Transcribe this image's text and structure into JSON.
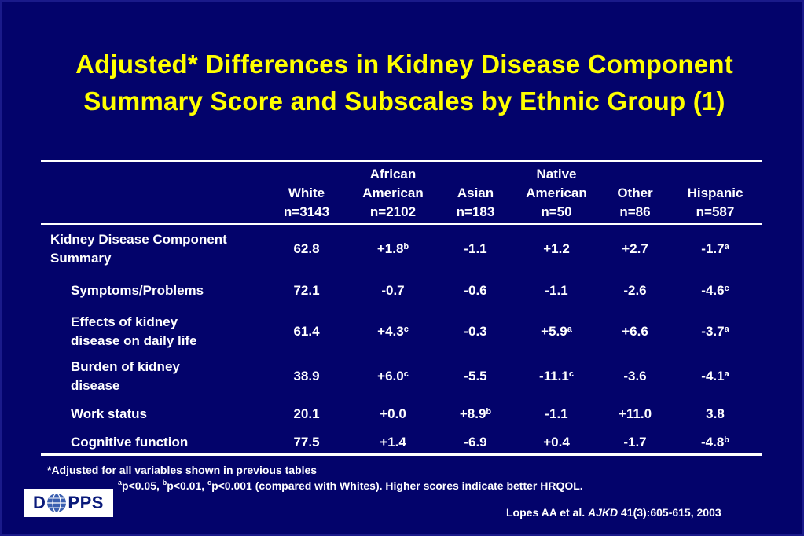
{
  "title": {
    "line1": "Adjusted* Differences in Kidney Disease Component",
    "line2": "Summary Score and Subscales by Ethnic Group (1)"
  },
  "colors": {
    "background": "#03036b",
    "title": "#ffff00",
    "text": "#ffffff"
  },
  "table": {
    "columns": [
      {
        "line1": "",
        "line2": "White",
        "line3": "n=3143"
      },
      {
        "line1": "African",
        "line2": "American",
        "line3": "n=2102"
      },
      {
        "line1": "",
        "line2": "Asian",
        "line3": "n=183"
      },
      {
        "line1": "Native",
        "line2": "American",
        "line3": "n=50"
      },
      {
        "line1": "",
        "line2": "Other",
        "line3": "n=86"
      },
      {
        "line1": "",
        "line2": "Hispanic",
        "line3": "n=587"
      }
    ],
    "rows": [
      {
        "label1": "Kidney Disease Component",
        "label2": "Summary",
        "values": [
          {
            "v": "62.8",
            "s": ""
          },
          {
            "v": "+1.8",
            "s": "b"
          },
          {
            "v": "-1.1",
            "s": ""
          },
          {
            "v": "+1.2",
            "s": ""
          },
          {
            "v": "+2.7",
            "s": ""
          },
          {
            "v": "-1.7",
            "s": "a"
          }
        ]
      },
      {
        "label1": "Symptoms/Problems",
        "label2": "",
        "values": [
          {
            "v": "72.1",
            "s": ""
          },
          {
            "v": "-0.7",
            "s": ""
          },
          {
            "v": "-0.6",
            "s": ""
          },
          {
            "v": "-1.1",
            "s": ""
          },
          {
            "v": "-2.6",
            "s": ""
          },
          {
            "v": "-4.6",
            "s": "c"
          }
        ]
      },
      {
        "label1": "Effects of kidney",
        "label2": "disease on daily life",
        "values": [
          {
            "v": "61.4",
            "s": ""
          },
          {
            "v": "+4.3",
            "s": "c"
          },
          {
            "v": "-0.3",
            "s": ""
          },
          {
            "v": "+5.9",
            "s": "a"
          },
          {
            "v": "+6.6",
            "s": ""
          },
          {
            "v": "-3.7",
            "s": "a"
          }
        ]
      },
      {
        "label1": "Burden of kidney",
        "label2": "disease",
        "values": [
          {
            "v": "38.9",
            "s": ""
          },
          {
            "v": "+6.0",
            "s": "c"
          },
          {
            "v": "-5.5",
            "s": ""
          },
          {
            "v": "-11.1",
            "s": "c"
          },
          {
            "v": "-3.6",
            "s": ""
          },
          {
            "v": "-4.1",
            "s": "a"
          }
        ]
      },
      {
        "label1": "Work status",
        "label2": "",
        "values": [
          {
            "v": "20.1",
            "s": ""
          },
          {
            "v": "+0.0",
            "s": ""
          },
          {
            "v": "+8.9",
            "s": "b"
          },
          {
            "v": "-1.1",
            "s": ""
          },
          {
            "v": "+11.0",
            "s": ""
          },
          {
            "v": "3.8",
            "s": ""
          }
        ]
      },
      {
        "label1": "Cognitive function",
        "label2": "",
        "values": [
          {
            "v": "77.5",
            "s": ""
          },
          {
            "v": "+1.4",
            "s": ""
          },
          {
            "v": "-6.9",
            "s": ""
          },
          {
            "v": "+0.4",
            "s": ""
          },
          {
            "v": "-1.7",
            "s": ""
          },
          {
            "v": "-4.8",
            "s": "b"
          }
        ]
      }
    ]
  },
  "footnotes": {
    "adjusted": "*Adjusted for all variables shown in previous tables",
    "sig_a": "a",
    "sig_a_text": "p<0.05, ",
    "sig_b": "b",
    "sig_b_text": "p<0.01, ",
    "sig_c": "c",
    "sig_c_text": "p<0.001 (compared with Whites).  Higher scores indicate better HRQOL."
  },
  "citation": {
    "authors": "Lopes AA et al. ",
    "journal": "AJKD",
    "ref": " 41(3):605-615, 2003"
  },
  "logo": {
    "left": "D",
    "right": "PPS"
  }
}
